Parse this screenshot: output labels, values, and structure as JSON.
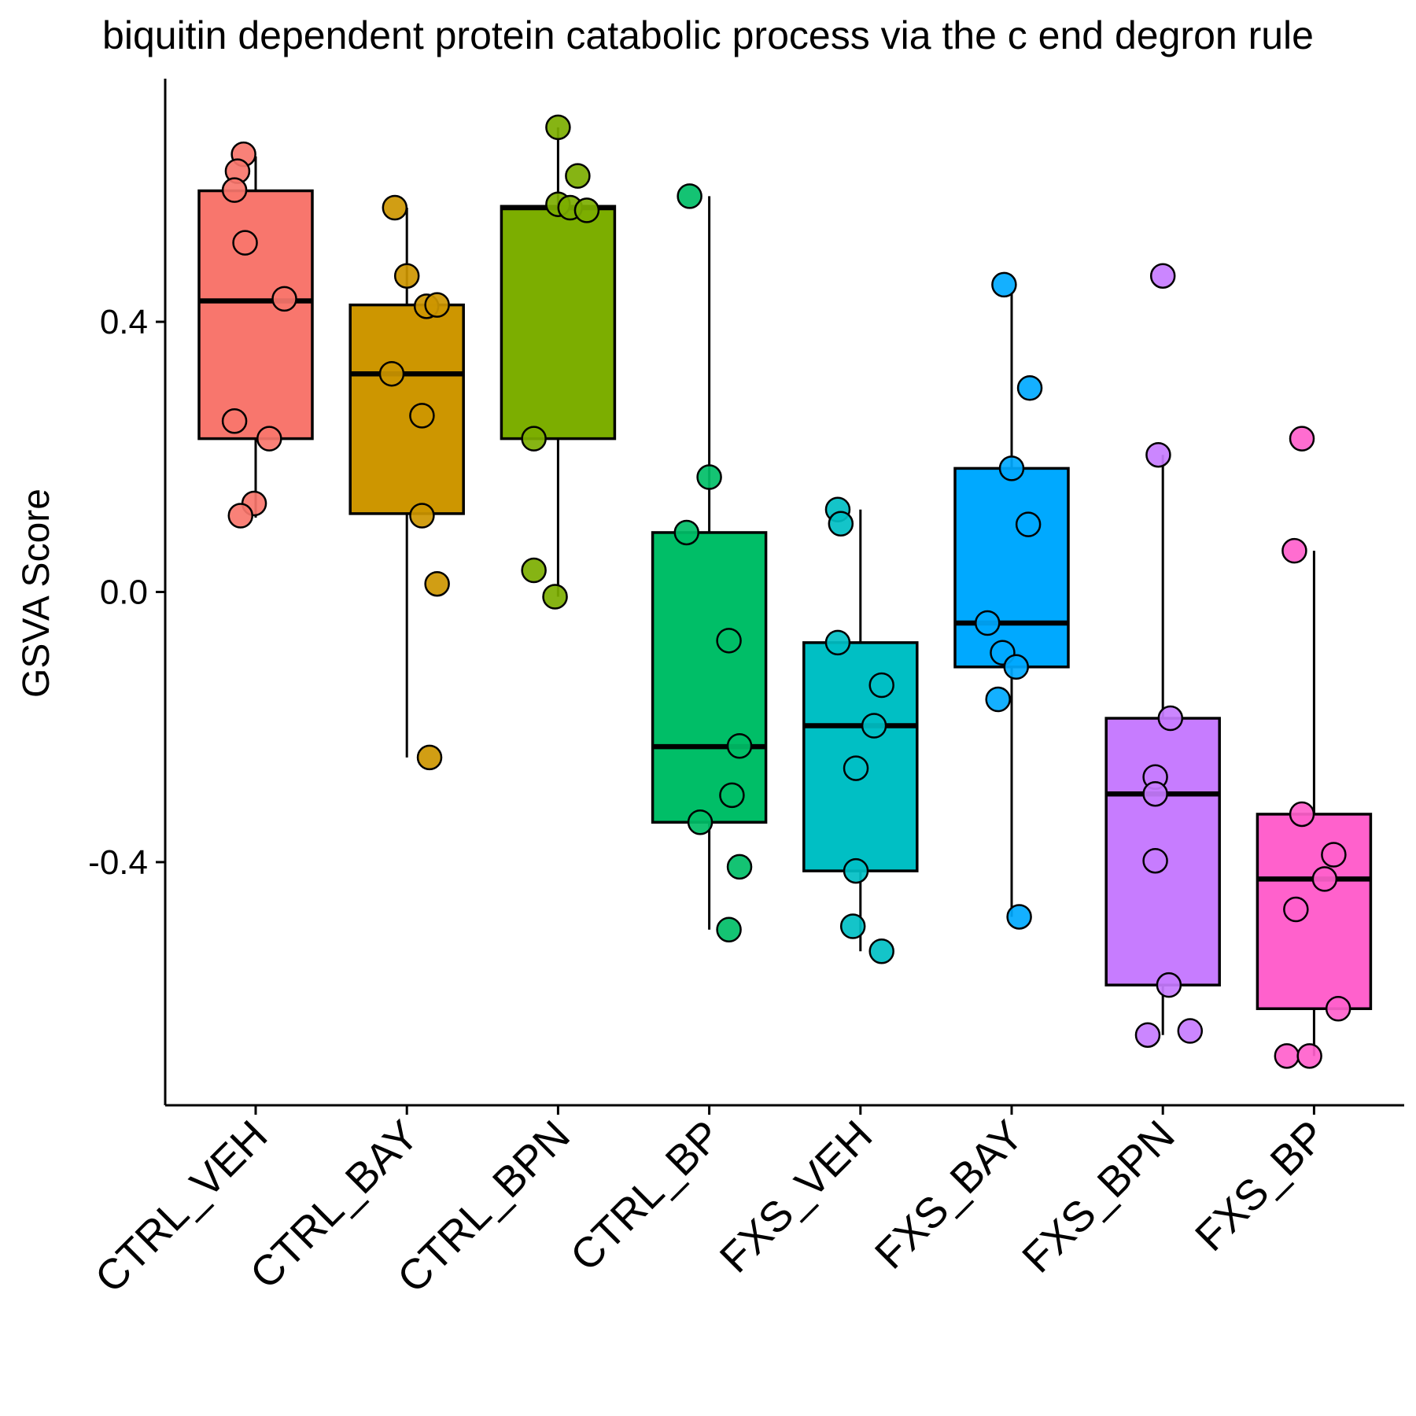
{
  "chart_data": {
    "type": "box",
    "title": "biquitin dependent protein catabolic process via the c end degron rule",
    "xlabel": "",
    "ylabel": "GSVA Score",
    "ylim": [
      -0.76,
      0.76
    ],
    "yticks": [
      0.4,
      0.0,
      -0.4
    ],
    "ytick_labels": [
      "0.4",
      "0.0",
      "-0.4"
    ],
    "grid": false,
    "legend": "none",
    "categories": [
      "CTRL_VEH",
      "CTRL_BAY",
      "CTRL_BPN",
      "CTRL_BP",
      "FXS_VEH",
      "FXS_BAY",
      "FXS_BPN",
      "FXS_BP"
    ],
    "colors": [
      "#F8766D",
      "#CD9600",
      "#7CAE00",
      "#00BE67",
      "#00BFC4",
      "#00A9FF",
      "#C77CFF",
      "#FF61CC"
    ],
    "boxes": [
      {
        "whisker_low": 0.11,
        "q1": 0.227,
        "median": 0.431,
        "q3": 0.594,
        "whisker_high": 0.645
      },
      {
        "whisker_low": -0.245,
        "q1": 0.116,
        "median": 0.323,
        "q3": 0.425,
        "whisker_high": 0.569
      },
      {
        "whisker_low": -0.007,
        "q1": 0.227,
        "median": 0.569,
        "q3": 0.571,
        "whisker_high": 0.688
      },
      {
        "whisker_low": -0.5,
        "q1": -0.341,
        "median": -0.229,
        "q3": 0.088,
        "whisker_high": 0.586
      },
      {
        "whisker_low": -0.532,
        "q1": -0.413,
        "median": -0.198,
        "q3": -0.075,
        "whisker_high": 0.122
      },
      {
        "whisker_low": -0.481,
        "q1": -0.111,
        "median": -0.046,
        "q3": 0.183,
        "whisker_high": 0.444
      },
      {
        "whisker_low": -0.656,
        "q1": -0.582,
        "median": -0.299,
        "q3": -0.187,
        "whisker_high": 0.203
      },
      {
        "whisker_low": -0.687,
        "q1": -0.617,
        "median": -0.425,
        "q3": -0.329,
        "whisker_high": 0.061
      }
    ],
    "points": [
      [
        [
          -0.08,
          0.648
        ],
        [
          -0.12,
          0.623
        ],
        [
          -0.14,
          0.595
        ],
        [
          -0.07,
          0.517
        ],
        [
          0.19,
          0.434
        ],
        [
          -0.14,
          0.253
        ],
        [
          0.09,
          0.227
        ],
        [
          -0.01,
          0.131
        ],
        [
          -0.1,
          0.113
        ]
      ],
      [
        [
          -0.08,
          0.569
        ],
        [
          0.0,
          0.468
        ],
        [
          0.13,
          0.423
        ],
        [
          0.2,
          0.425
        ],
        [
          -0.1,
          0.323
        ],
        [
          0.1,
          0.261
        ],
        [
          0.1,
          0.113
        ],
        [
          0.2,
          0.012
        ],
        [
          0.15,
          -0.245
        ]
      ],
      [
        [
          0.0,
          0.688
        ],
        [
          0.13,
          0.616
        ],
        [
          0.0,
          0.574
        ],
        [
          0.08,
          0.569
        ],
        [
          0.19,
          0.565
        ],
        [
          -0.16,
          0.227
        ],
        [
          -0.16,
          0.032
        ],
        [
          -0.02,
          -0.007
        ]
      ],
      [
        [
          -0.13,
          0.586
        ],
        [
          0.0,
          0.17
        ],
        [
          -0.15,
          0.088
        ],
        [
          0.13,
          -0.072
        ],
        [
          0.2,
          -0.228
        ],
        [
          0.15,
          -0.301
        ],
        [
          -0.06,
          -0.341
        ],
        [
          0.2,
          -0.407
        ],
        [
          0.13,
          -0.5
        ]
      ],
      [
        [
          -0.15,
          0.122
        ],
        [
          -0.13,
          0.101
        ],
        [
          -0.15,
          -0.075
        ],
        [
          0.14,
          -0.138
        ],
        [
          0.09,
          -0.198
        ],
        [
          -0.03,
          -0.261
        ],
        [
          -0.03,
          -0.413
        ],
        [
          -0.05,
          -0.495
        ],
        [
          0.14,
          -0.532
        ]
      ],
      [
        [
          -0.05,
          0.455
        ],
        [
          0.12,
          0.302
        ],
        [
          0.0,
          0.183
        ],
        [
          0.11,
          0.1
        ],
        [
          -0.16,
          -0.046
        ],
        [
          -0.06,
          -0.09
        ],
        [
          0.03,
          -0.111
        ],
        [
          -0.09,
          -0.159
        ],
        [
          0.05,
          -0.481
        ]
      ],
      [
        [
          0.0,
          0.468
        ],
        [
          -0.03,
          0.203
        ],
        [
          0.05,
          -0.187
        ],
        [
          -0.05,
          -0.274
        ],
        [
          -0.05,
          -0.299
        ],
        [
          -0.05,
          -0.398
        ],
        [
          0.04,
          -0.582
        ],
        [
          -0.1,
          -0.656
        ],
        [
          0.18,
          -0.65
        ]
      ],
      [
        [
          -0.08,
          0.227
        ],
        [
          -0.13,
          0.061
        ],
        [
          -0.08,
          -0.329
        ],
        [
          0.13,
          -0.389
        ],
        [
          0.07,
          -0.425
        ],
        [
          -0.12,
          -0.47
        ],
        [
          0.16,
          -0.617
        ],
        [
          -0.18,
          -0.687
        ],
        [
          -0.03,
          -0.687
        ]
      ]
    ]
  }
}
